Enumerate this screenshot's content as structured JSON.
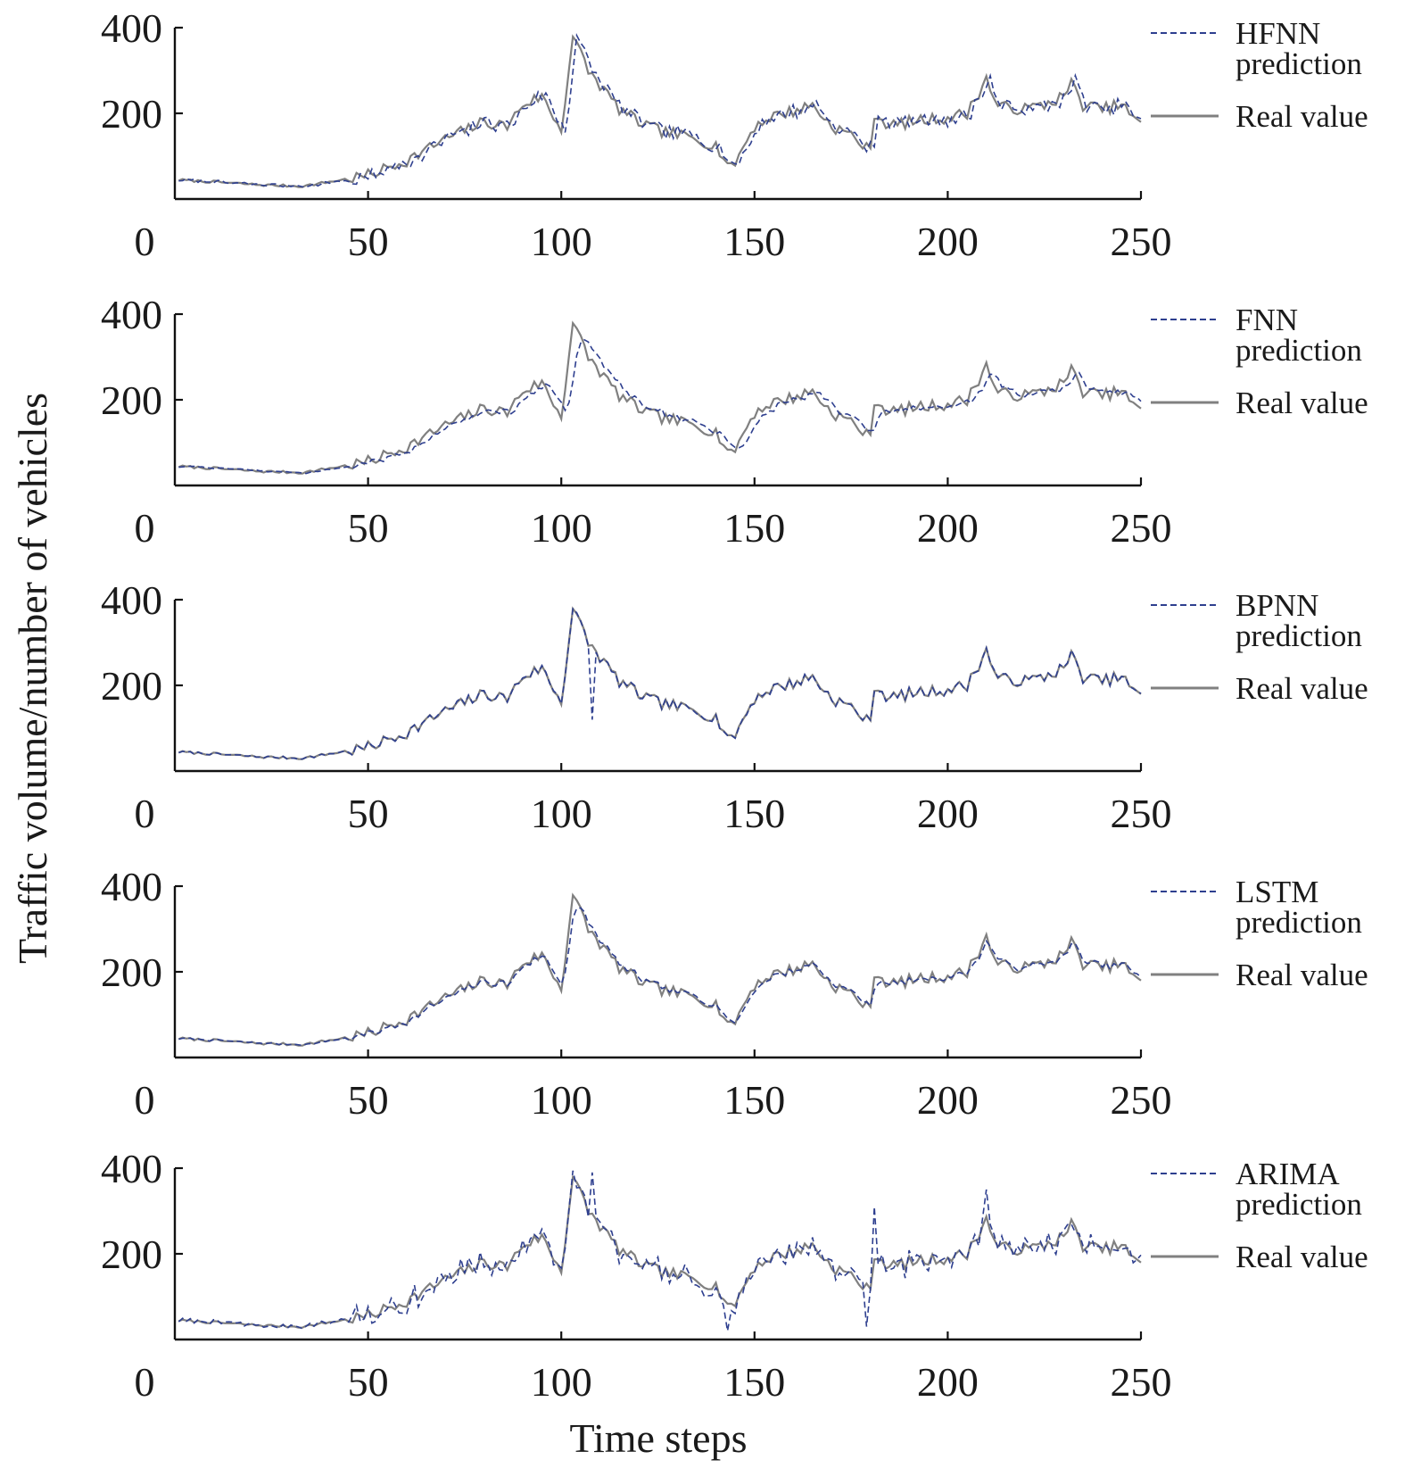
{
  "figure": {
    "xlabel": "Time steps",
    "ylabel": "Traffic volume/number of vehicles",
    "colors": {
      "prediction": "#2e3f8f",
      "real": "#808080"
    }
  },
  "chart_data": [
    {
      "type": "line",
      "title": "",
      "xlim": [
        0,
        250
      ],
      "ylim": [
        0,
        400
      ],
      "xticks": [
        0,
        50,
        100,
        150,
        200,
        250
      ],
      "yticks": [
        200,
        400
      ],
      "legend_position": "right",
      "legend": {
        "prediction_line1": "HFNN",
        "prediction_line2": "prediction",
        "real": "Real value"
      },
      "series": [
        {
          "name": "HFNN prediction",
          "style": "dashed",
          "noise": 16,
          "lag": 1,
          "spikes": []
        },
        {
          "name": "Real value",
          "style": "solid"
        }
      ]
    },
    {
      "type": "line",
      "title": "",
      "xlim": [
        0,
        250
      ],
      "ylim": [
        0,
        400
      ],
      "xticks": [
        0,
        50,
        100,
        150,
        200,
        250
      ],
      "yticks": [
        200,
        400
      ],
      "legend_position": "right",
      "legend": {
        "prediction_line1": "FNN",
        "prediction_line2": "prediction",
        "real": "Real value"
      },
      "series": [
        {
          "name": "FNN prediction",
          "style": "dashed",
          "noise": 8,
          "lag": 1,
          "smooth": 0.55,
          "spikes": []
        },
        {
          "name": "Real value",
          "style": "solid"
        }
      ]
    },
    {
      "type": "line",
      "title": "",
      "xlim": [
        0,
        250
      ],
      "ylim": [
        0,
        400
      ],
      "xticks": [
        0,
        50,
        100,
        150,
        200,
        250
      ],
      "yticks": [
        200,
        400
      ],
      "legend_position": "right",
      "legend": {
        "prediction_line1": "BPNN",
        "prediction_line2": "prediction",
        "real": "Real value"
      },
      "series": [
        {
          "name": "BPNN prediction",
          "style": "dashed",
          "noise": 6,
          "lag": 0,
          "spikes": [
            [
              108,
              120
            ]
          ]
        },
        {
          "name": "Real value",
          "style": "solid"
        }
      ]
    },
    {
      "type": "line",
      "title": "",
      "xlim": [
        0,
        250
      ],
      "ylim": [
        0,
        400
      ],
      "xticks": [
        0,
        50,
        100,
        150,
        200,
        250
      ],
      "yticks": [
        200,
        400
      ],
      "legend_position": "right",
      "legend": {
        "prediction_line1": "LSTM",
        "prediction_line2": "prediction",
        "real": "Real value"
      },
      "series": [
        {
          "name": "LSTM prediction",
          "style": "dashed",
          "noise": 6,
          "lag": 0,
          "smooth": 0.45,
          "spikes": []
        },
        {
          "name": "Real value",
          "style": "solid"
        }
      ]
    },
    {
      "type": "line",
      "title": "",
      "xlim": [
        0,
        250
      ],
      "ylim": [
        0,
        400
      ],
      "xticks": [
        0,
        50,
        100,
        150,
        200,
        250
      ],
      "yticks": [
        200,
        400
      ],
      "legend_position": "right",
      "legend": {
        "prediction_line1": "ARIMA",
        "prediction_line2": "prediction",
        "real": "Real value"
      },
      "series": [
        {
          "name": "ARIMA prediction",
          "style": "dashed",
          "noise": 42,
          "lag": 0,
          "spikes": [
            [
              108,
              390
            ],
            [
              143,
              20
            ],
            [
              181,
              310
            ],
            [
              210,
              350
            ],
            [
              179,
              30
            ]
          ]
        },
        {
          "name": "Real value",
          "style": "solid"
        }
      ]
    }
  ],
  "real_value_anchors": [
    [
      0,
      45
    ],
    [
      10,
      40
    ],
    [
      22,
      33
    ],
    [
      33,
      30
    ],
    [
      40,
      40
    ],
    [
      50,
      55
    ],
    [
      60,
      90
    ],
    [
      70,
      140
    ],
    [
      80,
      180
    ],
    [
      86,
      170
    ],
    [
      90,
      220
    ],
    [
      95,
      240
    ],
    [
      100,
      160
    ],
    [
      103,
      380
    ],
    [
      107,
      300
    ],
    [
      115,
      210
    ],
    [
      120,
      180
    ],
    [
      125,
      160
    ],
    [
      130,
      150
    ],
    [
      135,
      140
    ],
    [
      140,
      125
    ],
    [
      144,
      70
    ],
    [
      150,
      170
    ],
    [
      155,
      195
    ],
    [
      160,
      205
    ],
    [
      165,
      220
    ],
    [
      170,
      170
    ],
    [
      175,
      150
    ],
    [
      180,
      110
    ],
    [
      181,
      200
    ],
    [
      185,
      170
    ],
    [
      190,
      180
    ],
    [
      200,
      190
    ],
    [
      205,
      200
    ],
    [
      210,
      280
    ],
    [
      213,
      215
    ],
    [
      220,
      210
    ],
    [
      225,
      220
    ],
    [
      230,
      240
    ],
    [
      232,
      270
    ],
    [
      235,
      220
    ],
    [
      240,
      210
    ],
    [
      245,
      220
    ],
    [
      250,
      170
    ]
  ]
}
